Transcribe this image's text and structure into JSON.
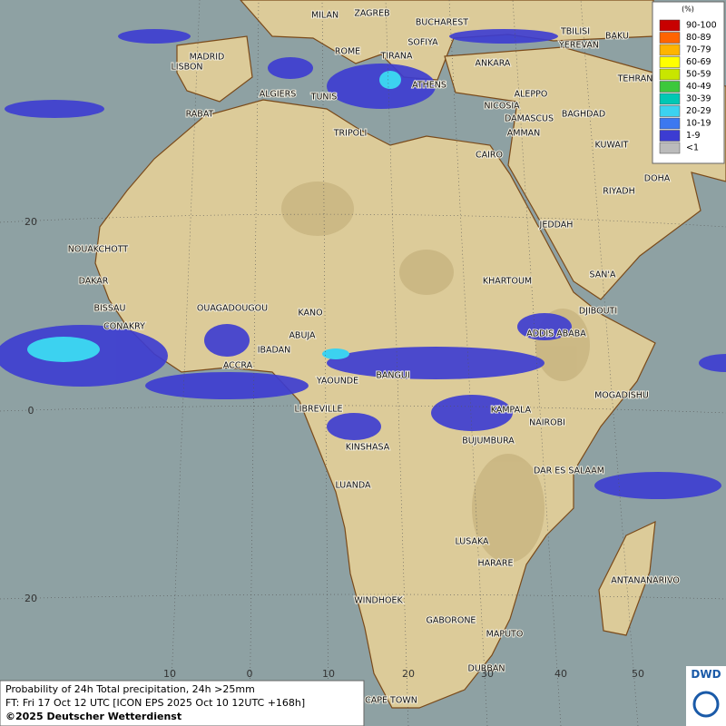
{
  "map": {
    "cities": [
      "MILAN",
      "ZAGREB",
      "BUCHAREST",
      "TBILISI",
      "BAKU",
      "MADRID",
      "ROME",
      "SOFIYA",
      "TIRANA",
      "YEREVAN",
      "ANKARA",
      "LISBON",
      "ATHENS",
      "TEHRAN",
      "ALGIERS",
      "TUNIS",
      "ALEPPO",
      "RABAT",
      "NICOSIA",
      "BAGHDAD",
      "DAMASCUS",
      "TRIPOLI",
      "AMMAN",
      "KUWAIT",
      "CAIRO",
      "DOHA",
      "RIYADH",
      "JEDDAH",
      "NOUAKCHOTT",
      "SAN'A",
      "DAKAR",
      "KHARTOUM",
      "BISSAU",
      "OUAGADOUGOU",
      "KANO",
      "DJIBOUTI",
      "CONAKRY",
      "ABUJA",
      "ADDIS ABABA",
      "IBADAN",
      "ACCRA",
      "BANGUI",
      "YAOUNDE",
      "MOGADISHU",
      "LIBREVILLE",
      "KAMPALA",
      "NAIROBI",
      "BUJUMBURA",
      "KINSHASA",
      "DAR ES SALAAM",
      "LUANDA",
      "LUSAKA",
      "HARARE",
      "ANTANANARIVO",
      "WINDHOEK",
      "GABORONE",
      "MAPUTO",
      "DURBAN",
      "CAPE TOWN"
    ],
    "lat_labels": [
      "20",
      "0",
      "20"
    ],
    "lon_labels": [
      "10",
      "0",
      "10",
      "20",
      "30",
      "40",
      "50"
    ]
  },
  "legend": {
    "title": "(%)",
    "items": [
      {
        "label": "90-100",
        "color": "#c80000"
      },
      {
        "label": "80-89",
        "color": "#ff6400"
      },
      {
        "label": "70-79",
        "color": "#ffb400"
      },
      {
        "label": "60-69",
        "color": "#ffff00"
      },
      {
        "label": "50-59",
        "color": "#c8e600"
      },
      {
        "label": "40-49",
        "color": "#3cc83c"
      },
      {
        "label": "30-39",
        "color": "#00c8b4"
      },
      {
        "label": "20-29",
        "color": "#3cd2f0"
      },
      {
        "label": "10-19",
        "color": "#3c78f0"
      },
      {
        "label": "1-9",
        "color": "#3c3cd2"
      },
      {
        "label": "<1",
        "color": "#bbbbbb"
      }
    ]
  },
  "footer": {
    "line1": "Probability of 24h Total precipitation, 24h >25mm",
    "line2": "FT: Fri 17 Oct 12 UTC [ICON EPS 2025 Oct 10 12UTC +168h]",
    "line3": "©2025 Deutscher Wetterdienst"
  },
  "logo": "DWD"
}
